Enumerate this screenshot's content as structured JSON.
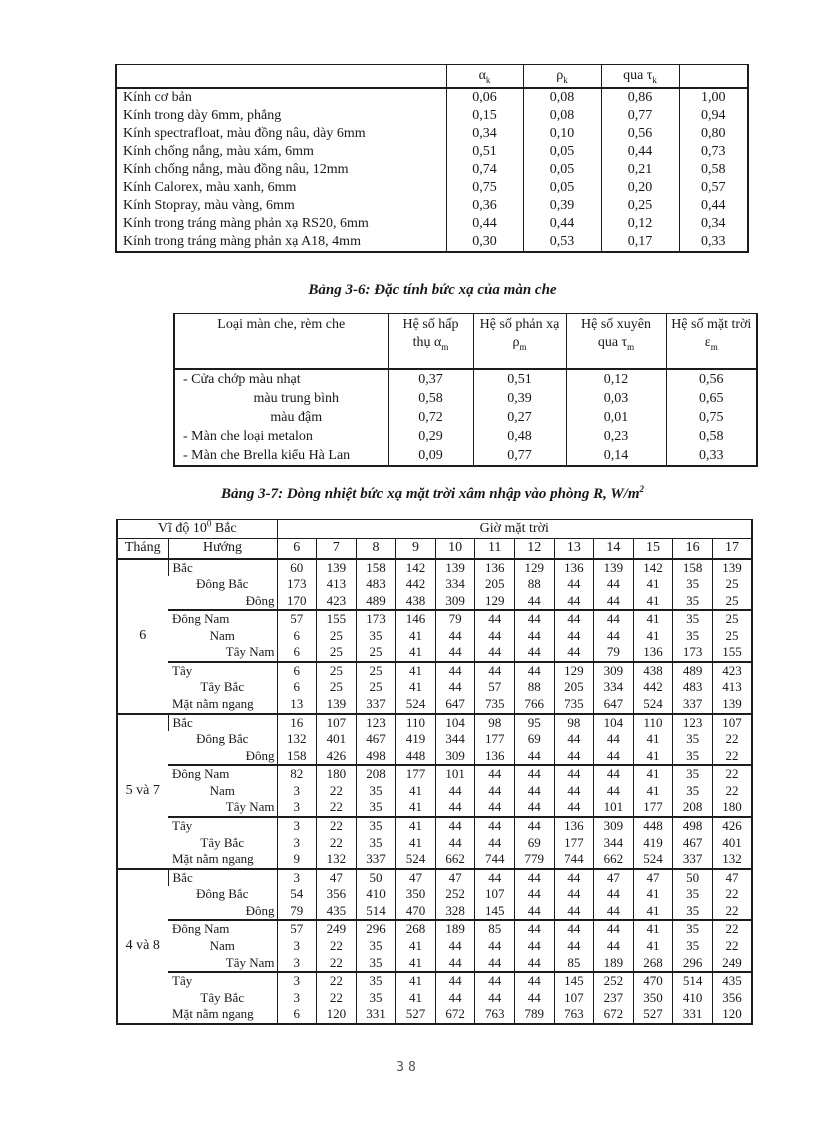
{
  "page": {
    "number": "38"
  },
  "glass_table": {
    "headers": [
      "",
      "α_k",
      "ρ_k",
      "qua τ_k",
      ""
    ],
    "rows": [
      [
        "Kính cơ bản",
        "0,06",
        "0,08",
        "0,86",
        "1,00"
      ],
      [
        "Kính trong dày 6mm, phẳng",
        "0,15",
        "0,08",
        "0,77",
        "0,94"
      ],
      [
        "Kính spectrafloat, màu đồng nâu, dày 6mm",
        "0,34",
        "0,10",
        "0,56",
        "0,80"
      ],
      [
        "Kính chống nắng, màu xám, 6mm",
        "0,51",
        "0,05",
        "0,44",
        "0,73"
      ],
      [
        "Kính chống nắng, màu đồng nâu, 12mm",
        "0,74",
        "0,05",
        "0,21",
        "0,58"
      ],
      [
        "Kính Calorex, màu xanh, 6mm",
        "0,75",
        "0,05",
        "0,20",
        "0,57"
      ],
      [
        "Kính Stopray, màu vàng, 6mm",
        "0,36",
        "0,39",
        "0,25",
        "0,44"
      ],
      [
        "Kính trong tráng màng phản xạ RS20, 6mm",
        "0,44",
        "0,44",
        "0,12",
        "0,34"
      ],
      [
        "Kính trong tráng màng phản xạ A18, 4mm",
        "0,30",
        "0,53",
        "0,17",
        "0,33"
      ]
    ]
  },
  "curtain_table": {
    "title": "Bảng 3-6: Đặc tính bức xạ của màn che",
    "headers": [
      "Loại màn che, rèm che",
      "Hệ số hấp thụ α_m",
      "Hệ số phản xạ ρ_m",
      "Hệ số xuyên qua τ_m",
      "Hệ số mặt trời ε_m"
    ],
    "rows": [
      [
        "- Cửa chớp màu nhạt",
        "0,37",
        "0,51",
        "0,12",
        "0,56"
      ],
      [
        "màu trung bình",
        "0,58",
        "0,39",
        "0,03",
        "0,65"
      ],
      [
        "màu đậm",
        "0,72",
        "0,27",
        "0,01",
        "0,75"
      ],
      [
        "- Màn che loại metalon",
        "0,29",
        "0,48",
        "0,23",
        "0,58"
      ],
      [
        "- Màn che Brella kiểu Hà Lan",
        "0,09",
        "0,77",
        "0,14",
        "0,33"
      ]
    ]
  },
  "solar_table": {
    "title": "Bảng 3-7:  Dòng nhiệt bức xạ mặt trời  xâm nhập vào phòng R, W/m^2",
    "latitude_header": "Vĩ độ 10^0 Bắc",
    "hours_header": "Giờ mặt trời",
    "month_col": "Tháng",
    "direction_col": "Hướng",
    "hours": [
      "6",
      "7",
      "8",
      "9",
      "10",
      "11",
      "12",
      "13",
      "14",
      "15",
      "16",
      "17"
    ],
    "groups": [
      {
        "month": "6",
        "rows": [
          {
            "dir": "Bắc",
            "values": [
              60,
              139,
              158,
              142,
              139,
              136,
              129,
              136,
              139,
              142,
              158,
              139
            ]
          },
          {
            "dir": "Đông Bắc",
            "values": [
              173,
              413,
              483,
              442,
              334,
              205,
              88,
              44,
              44,
              41,
              35,
              25
            ]
          },
          {
            "dir": "Đông",
            "values": [
              170,
              423,
              489,
              438,
              309,
              129,
              44,
              44,
              44,
              41,
              35,
              25
            ]
          },
          {
            "dir": "Đông Nam",
            "values": [
              57,
              155,
              173,
              146,
              79,
              44,
              44,
              44,
              44,
              41,
              35,
              25
            ]
          },
          {
            "dir": "Nam",
            "values": [
              6,
              25,
              35,
              41,
              44,
              44,
              44,
              44,
              44,
              41,
              35,
              25
            ]
          },
          {
            "dir": "Tây Nam",
            "values": [
              6,
              25,
              25,
              41,
              44,
              44,
              44,
              44,
              79,
              136,
              173,
              155
            ]
          },
          {
            "dir": "Tây",
            "values": [
              6,
              25,
              25,
              41,
              44,
              44,
              44,
              129,
              309,
              438,
              489,
              423
            ]
          },
          {
            "dir": "Tây Bắc",
            "values": [
              6,
              25,
              25,
              41,
              44,
              57,
              88,
              205,
              334,
              442,
              483,
              413
            ]
          },
          {
            "dir": "Mặt nằm ngang",
            "values": [
              13,
              139,
              337,
              524,
              647,
              735,
              766,
              735,
              647,
              524,
              337,
              139
            ]
          }
        ]
      },
      {
        "month": "5 và 7",
        "rows": [
          {
            "dir": "Bắc",
            "values": [
              16,
              107,
              123,
              110,
              104,
              98,
              95,
              98,
              104,
              110,
              123,
              107
            ]
          },
          {
            "dir": "Đông Bắc",
            "values": [
              132,
              401,
              467,
              419,
              344,
              177,
              69,
              44,
              44,
              41,
              35,
              22
            ]
          },
          {
            "dir": "Đông",
            "values": [
              158,
              426,
              498,
              448,
              309,
              136,
              44,
              44,
              44,
              41,
              35,
              22
            ]
          },
          {
            "dir": "Đông Nam",
            "values": [
              82,
              180,
              208,
              177,
              101,
              44,
              44,
              44,
              44,
              41,
              35,
              22
            ]
          },
          {
            "dir": "Nam",
            "values": [
              3,
              22,
              35,
              41,
              44,
              44,
              44,
              44,
              44,
              41,
              35,
              22
            ]
          },
          {
            "dir": "Tây Nam",
            "values": [
              3,
              22,
              35,
              41,
              44,
              44,
              44,
              44,
              101,
              177,
              208,
              180
            ]
          },
          {
            "dir": "Tây",
            "values": [
              3,
              22,
              35,
              41,
              44,
              44,
              44,
              136,
              309,
              448,
              498,
              426
            ]
          },
          {
            "dir": "Tây Bắc",
            "values": [
              3,
              22,
              35,
              41,
              44,
              44,
              69,
              177,
              344,
              419,
              467,
              401
            ]
          },
          {
            "dir": "Mặt nằm ngang",
            "values": [
              9,
              132,
              337,
              524,
              662,
              744,
              779,
              744,
              662,
              524,
              337,
              132
            ]
          }
        ]
      },
      {
        "month": "4 và 8",
        "rows": [
          {
            "dir": "Bắc",
            "values": [
              3,
              47,
              50,
              47,
              47,
              44,
              44,
              44,
              47,
              47,
              50,
              47
            ]
          },
          {
            "dir": "Đông Bắc",
            "values": [
              54,
              356,
              410,
              350,
              252,
              107,
              44,
              44,
              44,
              41,
              35,
              22
            ]
          },
          {
            "dir": "Đông",
            "values": [
              79,
              435,
              514,
              470,
              328,
              145,
              44,
              44,
              44,
              41,
              35,
              22
            ]
          },
          {
            "dir": "Đông Nam",
            "values": [
              57,
              249,
              296,
              268,
              189,
              85,
              44,
              44,
              44,
              41,
              35,
              22
            ]
          },
          {
            "dir": "Nam",
            "values": [
              3,
              22,
              35,
              41,
              44,
              44,
              44,
              44,
              44,
              41,
              35,
              22
            ]
          },
          {
            "dir": "Tây Nam",
            "values": [
              3,
              22,
              35,
              41,
              44,
              44,
              44,
              85,
              189,
              268,
              296,
              249
            ]
          },
          {
            "dir": "Tây",
            "values": [
              3,
              22,
              35,
              41,
              44,
              44,
              44,
              145,
              252,
              470,
              514,
              435
            ]
          },
          {
            "dir": "Tây Bắc",
            "values": [
              3,
              22,
              35,
              41,
              44,
              44,
              44,
              107,
              237,
              350,
              410,
              356
            ]
          },
          {
            "dir": "Mặt nằm ngang",
            "values": [
              6,
              120,
              331,
              527,
              672,
              763,
              789,
              763,
              672,
              527,
              331,
              120
            ]
          }
        ]
      }
    ]
  }
}
